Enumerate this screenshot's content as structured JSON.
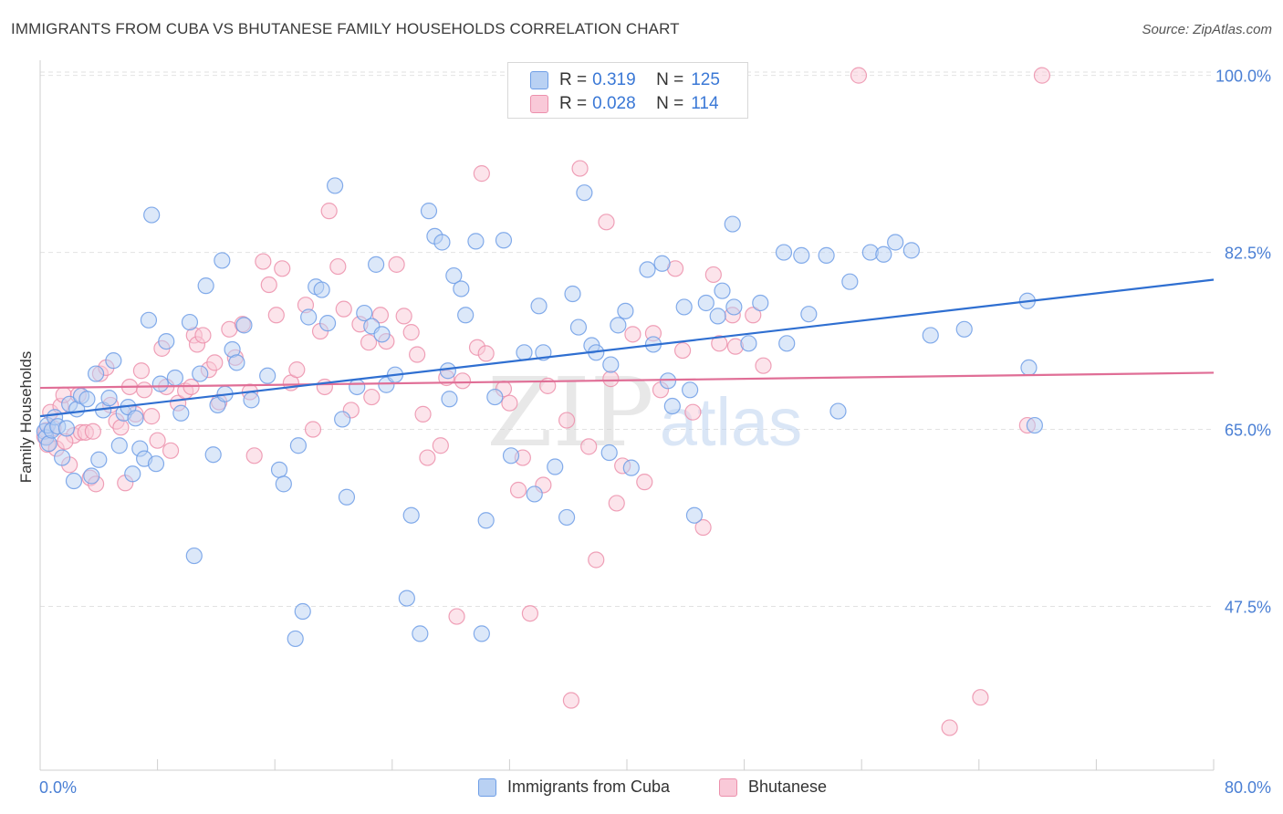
{
  "title": "IMMIGRANTS FROM CUBA VS BHUTANESE FAMILY HOUSEHOLDS CORRELATION CHART",
  "source": "Source: ZipAtlas.com",
  "watermark": {
    "zip": "ZIP",
    "atlas": "atlas"
  },
  "legend_top": {
    "rows": [
      {
        "r_label": "R =",
        "r_value": "0.319",
        "n_label": "N =",
        "n_value": "125",
        "color": "blue"
      },
      {
        "r_label": "R =",
        "r_value": "0.028",
        "n_label": "N =",
        "n_value": "114",
        "color": "pink"
      }
    ]
  },
  "legend_bottom": {
    "series1": "Immigrants from Cuba",
    "series2": "Bhutanese"
  },
  "colors": {
    "blue_fill": "#b9d1f3",
    "blue_stroke": "#6e9ee6",
    "blue_line": "#2f6fd1",
    "pink_fill": "#f9c9d8",
    "pink_stroke": "#ec90ac",
    "pink_line": "#e06e96",
    "axis_text": "#4a7fd4",
    "grid": "#e2e2e2"
  },
  "chart_data": {
    "type": "scatter",
    "title": "IMMIGRANTS FROM CUBA VS BHUTANESE FAMILY HOUSEHOLDS CORRELATION CHART",
    "xlabel": "",
    "ylabel": "Family Households",
    "x_tick_labels": [
      "0.0%",
      "80.0%"
    ],
    "y_tick_labels": [
      "100.0%",
      "82.5%",
      "65.0%",
      "47.5%"
    ],
    "y_ticks": [
      100.0,
      82.5,
      65.0,
      47.5
    ],
    "xlim": [
      0,
      80
    ],
    "ylim": [
      31.3,
      101.5
    ],
    "grid": true,
    "legend_position": "bottom",
    "series": [
      {
        "name": "Immigrants from Cuba",
        "color": "blue",
        "trend": {
          "x": [
            0,
            80
          ],
          "y": [
            66.3,
            79.8
          ]
        },
        "points": [
          [
            0.3,
            64.8
          ],
          [
            0.4,
            64.2
          ],
          [
            0.5,
            65.4
          ],
          [
            0.6,
            63.6
          ],
          [
            0.8,
            64.9
          ],
          [
            1.0,
            66.2
          ],
          [
            1.2,
            65.3
          ],
          [
            1.5,
            62.2
          ],
          [
            1.8,
            65.1
          ],
          [
            2.0,
            67.5
          ],
          [
            2.3,
            59.9
          ],
          [
            2.5,
            67.0
          ],
          [
            2.8,
            68.3
          ],
          [
            3.2,
            68.0
          ],
          [
            3.5,
            60.4
          ],
          [
            3.8,
            70.5
          ],
          [
            4.0,
            62.0
          ],
          [
            4.3,
            66.9
          ],
          [
            4.7,
            68.1
          ],
          [
            5.0,
            71.8
          ],
          [
            5.4,
            63.4
          ],
          [
            5.7,
            66.6
          ],
          [
            6.0,
            67.2
          ],
          [
            6.3,
            60.6
          ],
          [
            6.5,
            66.1
          ],
          [
            6.8,
            63.1
          ],
          [
            7.1,
            62.1
          ],
          [
            7.4,
            75.8
          ],
          [
            7.6,
            86.2
          ],
          [
            7.9,
            61.6
          ],
          [
            8.2,
            69.5
          ],
          [
            8.6,
            73.7
          ],
          [
            9.2,
            70.1
          ],
          [
            9.6,
            66.6
          ],
          [
            10.2,
            75.6
          ],
          [
            10.5,
            52.5
          ],
          [
            10.9,
            70.5
          ],
          [
            11.3,
            79.2
          ],
          [
            11.8,
            62.5
          ],
          [
            12.1,
            67.4
          ],
          [
            12.4,
            81.7
          ],
          [
            12.6,
            68.5
          ],
          [
            13.1,
            72.9
          ],
          [
            13.4,
            71.6
          ],
          [
            13.9,
            75.3
          ],
          [
            14.4,
            67.9
          ],
          [
            15.5,
            70.3
          ],
          [
            16.3,
            61.0
          ],
          [
            16.6,
            59.6
          ],
          [
            17.4,
            44.3
          ],
          [
            17.6,
            63.4
          ],
          [
            17.9,
            47.0
          ],
          [
            18.3,
            76.1
          ],
          [
            18.8,
            79.1
          ],
          [
            19.2,
            78.8
          ],
          [
            19.6,
            75.5
          ],
          [
            20.1,
            89.1
          ],
          [
            20.6,
            66.0
          ],
          [
            20.9,
            58.3
          ],
          [
            21.6,
            69.2
          ],
          [
            22.1,
            76.5
          ],
          [
            22.6,
            75.2
          ],
          [
            22.9,
            81.3
          ],
          [
            23.3,
            74.4
          ],
          [
            23.6,
            69.4
          ],
          [
            24.2,
            70.4
          ],
          [
            25.0,
            48.3
          ],
          [
            25.3,
            56.5
          ],
          [
            25.9,
            44.8
          ],
          [
            26.5,
            86.6
          ],
          [
            26.9,
            84.1
          ],
          [
            27.4,
            83.5
          ],
          [
            27.8,
            70.8
          ],
          [
            27.9,
            68.0
          ],
          [
            28.2,
            80.2
          ],
          [
            28.7,
            78.9
          ],
          [
            29.0,
            76.3
          ],
          [
            29.7,
            83.6
          ],
          [
            30.1,
            44.8
          ],
          [
            30.4,
            56.0
          ],
          [
            31.0,
            68.2
          ],
          [
            31.6,
            83.7
          ],
          [
            32.1,
            62.4
          ],
          [
            33.0,
            72.6
          ],
          [
            33.7,
            58.6
          ],
          [
            34.0,
            77.2
          ],
          [
            34.3,
            72.6
          ],
          [
            35.1,
            61.3
          ],
          [
            35.9,
            56.3
          ],
          [
            36.3,
            78.4
          ],
          [
            36.7,
            75.1
          ],
          [
            37.1,
            88.4
          ],
          [
            37.6,
            73.3
          ],
          [
            37.9,
            72.6
          ],
          [
            38.8,
            62.7
          ],
          [
            38.9,
            71.4
          ],
          [
            39.4,
            75.3
          ],
          [
            39.9,
            76.7
          ],
          [
            40.3,
            61.2
          ],
          [
            41.4,
            80.8
          ],
          [
            41.8,
            73.4
          ],
          [
            42.4,
            81.4
          ],
          [
            42.8,
            69.8
          ],
          [
            43.1,
            67.3
          ],
          [
            43.9,
            77.1
          ],
          [
            44.3,
            68.9
          ],
          [
            44.6,
            56.5
          ],
          [
            45.4,
            77.5
          ],
          [
            46.2,
            76.2
          ],
          [
            46.5,
            78.7
          ],
          [
            47.2,
            85.3
          ],
          [
            47.3,
            77.1
          ],
          [
            48.3,
            73.5
          ],
          [
            49.1,
            77.5
          ],
          [
            50.7,
            82.5
          ],
          [
            50.9,
            73.5
          ],
          [
            51.9,
            82.2
          ],
          [
            52.4,
            76.4
          ],
          [
            53.6,
            82.2
          ],
          [
            54.4,
            66.8
          ],
          [
            55.2,
            79.6
          ],
          [
            56.6,
            82.5
          ],
          [
            57.5,
            82.3
          ],
          [
            58.3,
            83.5
          ],
          [
            59.4,
            82.7
          ],
          [
            60.7,
            74.3
          ],
          [
            63.0,
            74.9
          ],
          [
            67.4,
            71.1
          ],
          [
            67.3,
            77.7
          ],
          [
            67.8,
            65.4
          ]
        ]
      },
      {
        "name": "Bhutanese",
        "color": "pink",
        "trend": {
          "x": [
            0,
            80
          ],
          "y": [
            69.1,
            70.6
          ]
        },
        "points": [
          [
            0.3,
            64.3
          ],
          [
            0.5,
            63.5
          ],
          [
            0.7,
            66.7
          ],
          [
            0.9,
            65.1
          ],
          [
            1.1,
            63.1
          ],
          [
            1.4,
            67.3
          ],
          [
            1.6,
            68.4
          ],
          [
            2.0,
            61.5
          ],
          [
            2.3,
            64.4
          ],
          [
            2.6,
            68.4
          ],
          [
            2.8,
            64.7
          ],
          [
            3.1,
            64.7
          ],
          [
            3.4,
            60.2
          ],
          [
            3.6,
            64.8
          ],
          [
            3.8,
            59.6
          ],
          [
            4.1,
            70.5
          ],
          [
            4.5,
            71.1
          ],
          [
            4.8,
            67.4
          ],
          [
            5.2,
            65.8
          ],
          [
            5.5,
            65.2
          ],
          [
            5.8,
            59.7
          ],
          [
            6.1,
            69.2
          ],
          [
            6.5,
            66.5
          ],
          [
            6.9,
            70.8
          ],
          [
            7.1,
            68.9
          ],
          [
            7.6,
            66.3
          ],
          [
            8.0,
            63.9
          ],
          [
            8.3,
            73.0
          ],
          [
            8.6,
            69.2
          ],
          [
            8.9,
            62.9
          ],
          [
            9.4,
            67.6
          ],
          [
            9.9,
            68.8
          ],
          [
            10.3,
            69.2
          ],
          [
            10.5,
            74.3
          ],
          [
            10.7,
            73.4
          ],
          [
            11.1,
            74.3
          ],
          [
            11.5,
            70.9
          ],
          [
            11.9,
            71.6
          ],
          [
            12.2,
            67.7
          ],
          [
            12.9,
            74.9
          ],
          [
            13.3,
            72.1
          ],
          [
            13.8,
            75.4
          ],
          [
            14.3,
            68.7
          ],
          [
            14.6,
            62.4
          ],
          [
            15.2,
            81.6
          ],
          [
            15.6,
            79.3
          ],
          [
            16.1,
            76.3
          ],
          [
            16.5,
            80.9
          ],
          [
            17.1,
            69.6
          ],
          [
            17.5,
            70.9
          ],
          [
            18.1,
            77.3
          ],
          [
            18.6,
            65.0
          ],
          [
            19.1,
            74.7
          ],
          [
            19.4,
            69.2
          ],
          [
            19.7,
            86.6
          ],
          [
            20.3,
            81.1
          ],
          [
            20.7,
            76.9
          ],
          [
            21.2,
            66.9
          ],
          [
            21.8,
            75.4
          ],
          [
            22.4,
            73.6
          ],
          [
            22.6,
            68.2
          ],
          [
            23.2,
            76.3
          ],
          [
            23.6,
            73.7
          ],
          [
            24.3,
            81.3
          ],
          [
            24.8,
            76.2
          ],
          [
            25.3,
            74.6
          ],
          [
            25.7,
            72.4
          ],
          [
            26.1,
            66.5
          ],
          [
            26.4,
            62.2
          ],
          [
            27.3,
            63.4
          ],
          [
            27.7,
            70.1
          ],
          [
            28.4,
            46.5
          ],
          [
            28.8,
            69.8
          ],
          [
            29.8,
            73.1
          ],
          [
            30.1,
            90.3
          ],
          [
            30.4,
            72.5
          ],
          [
            31.6,
            69.0
          ],
          [
            32.0,
            67.6
          ],
          [
            32.6,
            59.0
          ],
          [
            32.9,
            62.2
          ],
          [
            33.4,
            46.8
          ],
          [
            34.3,
            59.5
          ],
          [
            34.6,
            69.3
          ],
          [
            35.7,
            100.0
          ],
          [
            35.9,
            65.9
          ],
          [
            36.2,
            38.2
          ],
          [
            36.8,
            90.8
          ],
          [
            37.4,
            63.3
          ],
          [
            37.9,
            52.1
          ],
          [
            38.6,
            85.5
          ],
          [
            38.9,
            70.0
          ],
          [
            39.3,
            57.7
          ],
          [
            39.7,
            61.4
          ],
          [
            40.4,
            74.4
          ],
          [
            41.2,
            59.8
          ],
          [
            41.8,
            74.5
          ],
          [
            42.3,
            68.9
          ],
          [
            43.3,
            80.9
          ],
          [
            43.8,
            72.8
          ],
          [
            44.5,
            66.7
          ],
          [
            45.2,
            55.3
          ],
          [
            45.9,
            80.3
          ],
          [
            46.3,
            73.5
          ],
          [
            47.2,
            76.3
          ],
          [
            47.4,
            73.2
          ],
          [
            48.6,
            76.3
          ],
          [
            49.3,
            71.3
          ],
          [
            55.8,
            100.0
          ],
          [
            62.0,
            35.5
          ],
          [
            64.1,
            38.5
          ],
          [
            67.3,
            65.4
          ],
          [
            68.3,
            100.0
          ],
          [
            0.4,
            64.9
          ],
          [
            1.7,
            63.8
          ]
        ]
      }
    ]
  }
}
